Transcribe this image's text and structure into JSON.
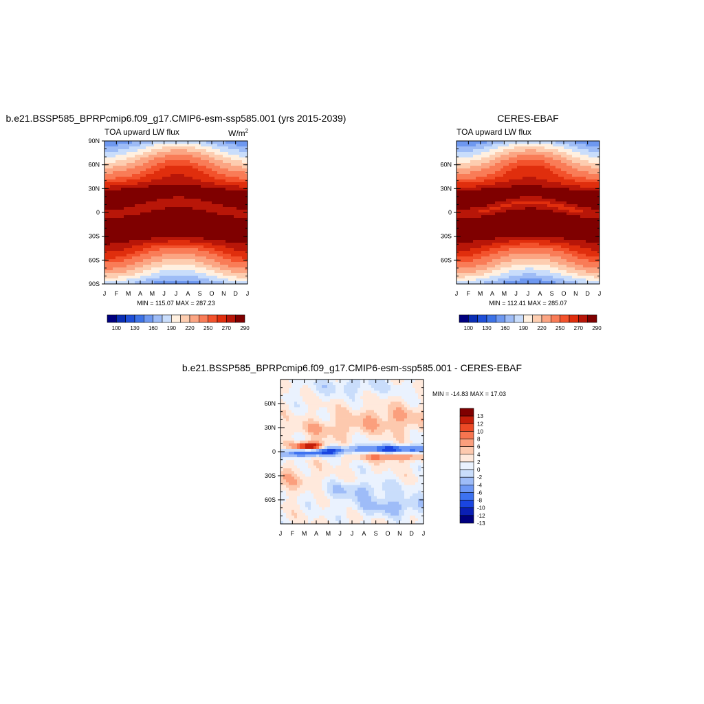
{
  "palette": {
    "mean": [
      "#00007F",
      "#0A2EB5",
      "#1F4FD8",
      "#3D72E6",
      "#6E98F0",
      "#9EBCF6",
      "#C9DDFB",
      "#FFF0E0",
      "#FDCDB0",
      "#FBA583",
      "#F97C57",
      "#F3522C",
      "#E02E0D",
      "#B81608",
      "#7F0000"
    ],
    "diff": [
      "#00007F",
      "#0A1FB5",
      "#1A45E0",
      "#3D72F0",
      "#6E98F5",
      "#9EBCF8",
      "#C9DDFB",
      "#EAF2FE",
      "#FFE9DC",
      "#FDC9AE",
      "#FB9F7D",
      "#F77550",
      "#EC4A26",
      "#C41E0A",
      "#7F0000"
    ]
  },
  "chart_data": [
    {
      "type": "heatmap",
      "title": "b.e21.BSSP585_BPRPcmip6.f09_g17.CMIP6-esm-ssp585.001 (yrs 2015-2039)",
      "subtitle": "TOA upward LW flux",
      "units_base": "W/m",
      "units_exp": "2",
      "stats": "MIN = 115.07 MAX = 287.23",
      "x_ticks": [
        "J",
        "F",
        "M",
        "A",
        "M",
        "J",
        "J",
        "A",
        "S",
        "O",
        "N",
        "D",
        "J"
      ],
      "y_ticks": [
        {
          "lat": 90,
          "label": "90N"
        },
        {
          "lat": 60,
          "label": "60N"
        },
        {
          "lat": 30,
          "label": "30N"
        },
        {
          "lat": 0,
          "label": "0"
        },
        {
          "lat": -30,
          "label": "30S"
        },
        {
          "lat": -60,
          "label": "60S"
        },
        {
          "lat": -90,
          "label": "90S"
        }
      ],
      "levels": [
        100,
        115,
        130,
        145,
        160,
        175,
        190,
        205,
        220,
        235,
        250,
        260,
        270,
        280,
        290
      ],
      "colorbar_labels": [
        "100",
        "130",
        "160",
        "190",
        "220",
        "250",
        "270",
        "290"
      ],
      "min": 115.07,
      "max": 287.23,
      "model": "a"
    },
    {
      "type": "heatmap",
      "title": "CERES-EBAF",
      "subtitle": "TOA upward LW flux",
      "stats": "MIN = 112.41 MAX = 285.07",
      "x_ticks": [
        "J",
        "F",
        "M",
        "A",
        "M",
        "J",
        "J",
        "A",
        "S",
        "O",
        "N",
        "D",
        "J"
      ],
      "y_ticks": [
        {
          "lat": 60,
          "label": "60N"
        },
        {
          "lat": 30,
          "label": "30N"
        },
        {
          "lat": 0,
          "label": "0"
        },
        {
          "lat": -30,
          "label": "30S"
        },
        {
          "lat": -60,
          "label": "60S"
        }
      ],
      "levels": [
        100,
        115,
        130,
        145,
        160,
        175,
        190,
        205,
        220,
        235,
        250,
        260,
        270,
        280,
        290
      ],
      "colorbar_labels": [
        "100",
        "130",
        "160",
        "190",
        "220",
        "250",
        "270",
        "290"
      ],
      "min": 112.41,
      "max": 285.07,
      "model": "b"
    },
    {
      "type": "heatmap",
      "title": "b.e21.BSSP585_BPRPcmip6.f09_g17.CMIP6-esm-ssp585.001 - CERES-EBAF",
      "stats": "MIN = -14.83 MAX =  17.03",
      "x_ticks": [
        "J",
        "F",
        "M",
        "A",
        "M",
        "J",
        "J",
        "A",
        "S",
        "O",
        "N",
        "D",
        "J"
      ],
      "y_ticks": [
        {
          "lat": 60,
          "label": "60N"
        },
        {
          "lat": 30,
          "label": "30N"
        },
        {
          "lat": 0,
          "label": "0"
        },
        {
          "lat": -30,
          "label": "30S"
        },
        {
          "lat": -60,
          "label": "60S"
        }
      ],
      "levels": [
        -13,
        -12,
        -10,
        -8,
        -6,
        -4,
        -2,
        0,
        2,
        4,
        6,
        8,
        10,
        12,
        13
      ],
      "colorbar_labels": [
        "13",
        "12",
        "10",
        "8",
        "6",
        "4",
        "2",
        "0",
        "-2",
        "-4",
        "-6",
        "-8",
        "-10",
        "-12",
        "-13"
      ],
      "min": -14.83,
      "max": 17.03
    }
  ]
}
